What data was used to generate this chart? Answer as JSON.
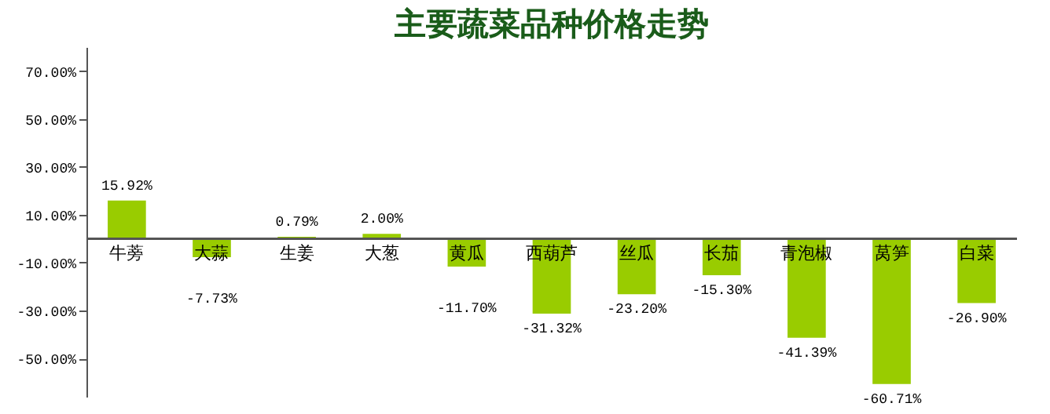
{
  "chart_data": {
    "type": "bar",
    "title": "主要蔬菜品种价格走势",
    "categories": [
      "牛蒡",
      "大蒜",
      "生姜",
      "大葱",
      "黄瓜",
      "西葫芦",
      "丝瓜",
      "长茄",
      "青泡椒",
      "莴笋",
      "白菜"
    ],
    "values": [
      15.92,
      -7.73,
      0.79,
      2.0,
      -11.7,
      -31.32,
      -23.2,
      -15.3,
      -41.39,
      -60.71,
      -26.9
    ],
    "value_labels": [
      "15.92%",
      "-7.73%",
      "0.79%",
      "2.00%",
      "-11.70%",
      "-31.32%",
      "-23.20%",
      "-15.30%",
      "-41.39%",
      "-60.71%",
      "-26.90%"
    ],
    "color": "#99cc00",
    "ylim": [
      -66,
      80
    ],
    "yticks": [
      {
        "value": 70,
        "label": "70.00%"
      },
      {
        "value": 50,
        "label": "50.00%"
      },
      {
        "value": 30,
        "label": "30.00%"
      },
      {
        "value": 10,
        "label": "10.00%"
      },
      {
        "value": -10,
        "label": "-10.00%"
      },
      {
        "value": -30,
        "label": "-30.00%"
      },
      {
        "value": -50,
        "label": "-50.00%"
      }
    ],
    "grid": false
  }
}
